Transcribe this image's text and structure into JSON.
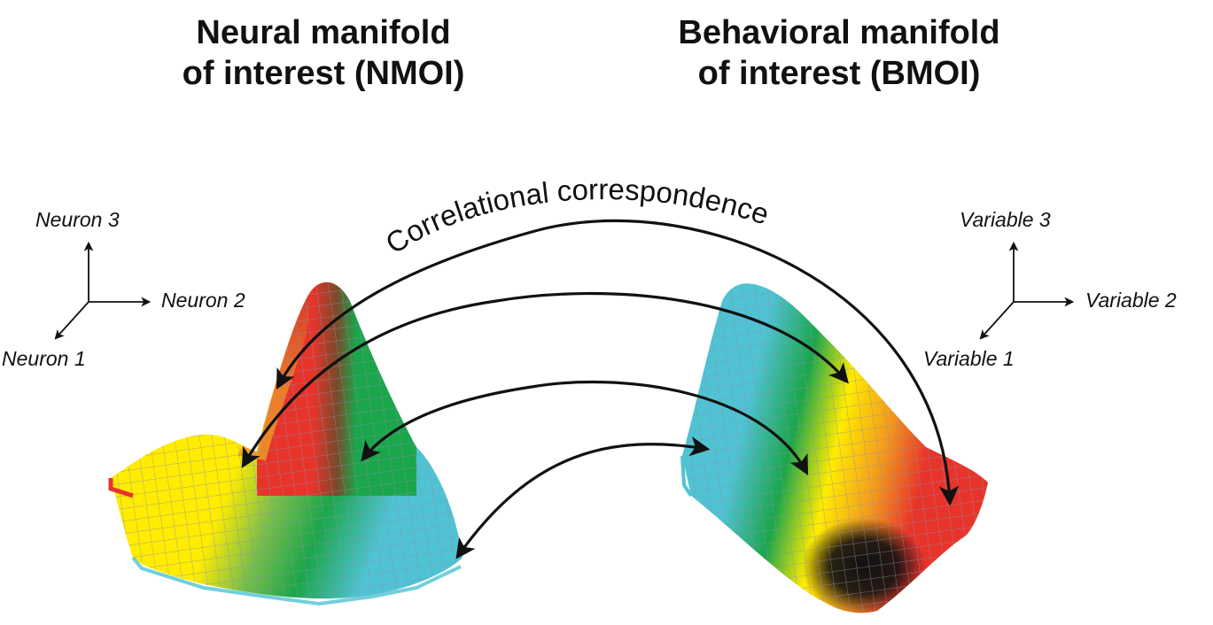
{
  "titles": {
    "neural": {
      "line1": "Neural manifold",
      "line2": "of interest (NMOI)"
    },
    "behavioral": {
      "line1": "Behavioral manifold",
      "line2": "of interest (BMOI)"
    }
  },
  "neural_axes": {
    "x": "Neuron 2",
    "y": "Neuron 3",
    "z": "Neuron 1"
  },
  "behavioral_axes": {
    "x": "Variable 2",
    "y": "Variable 3",
    "z": "Variable 1"
  },
  "correspondence_label": "Correlational correspondence",
  "colors": {
    "red": "#e8332a",
    "orange": "#f39a1d",
    "yellow": "#ffec00",
    "green": "#1aa64a",
    "cyan": "#4fc3d3",
    "black": "#111111",
    "arrow": "#111111"
  }
}
